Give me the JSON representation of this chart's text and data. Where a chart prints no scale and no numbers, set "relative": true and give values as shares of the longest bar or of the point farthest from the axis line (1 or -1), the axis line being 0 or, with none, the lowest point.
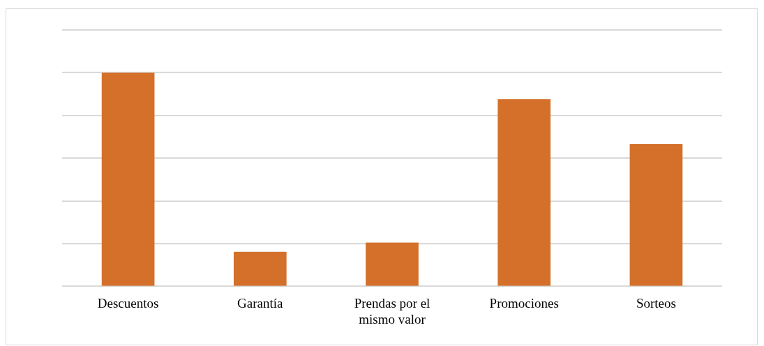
{
  "chart_data": {
    "type": "bar",
    "relative": true,
    "grid": "y",
    "categories": [
      "Descuentos",
      "Garantía",
      "Prendas por el mismo valor",
      "Promociones",
      "Sorteos"
    ],
    "values": [
      1,
      0.162,
      0.205,
      0.877,
      0.666
    ],
    "color": "#d4702a"
  }
}
